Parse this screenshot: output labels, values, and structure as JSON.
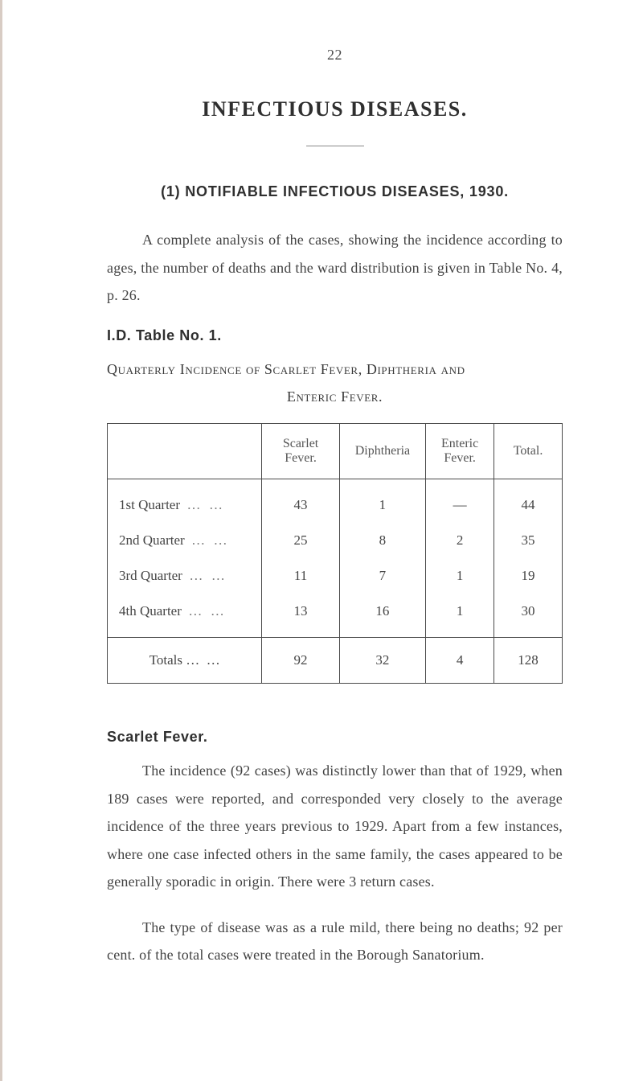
{
  "page_number": "22",
  "title": "INFECTIOUS DISEASES.",
  "section_heading": "(1) NOTIFIABLE INFECTIOUS DISEASES, 1930.",
  "intro_para": "A complete analysis of the cases, showing the incidence according to ages, the number of deaths and the ward dis­tribution is given in Table No. 4, p. 26.",
  "table_no_label": "I.D. Table No. 1.",
  "table_caption_line1": "Quarterly Incidence of Scarlet Fever, Diphtheria and",
  "table_caption_line2": "Enteric Fever.",
  "table": {
    "columns": [
      "",
      "Scarlet Fever.",
      "Diphtheria",
      "Enteric Fever.",
      "Total."
    ],
    "rows": [
      {
        "label": "1st Quarter",
        "values": [
          "43",
          "1",
          "—",
          "44"
        ]
      },
      {
        "label": "2nd Quarter",
        "values": [
          "25",
          "8",
          "2",
          "35"
        ]
      },
      {
        "label": "3rd Quarter",
        "values": [
          "11",
          "7",
          "1",
          "19"
        ]
      },
      {
        "label": "4th Quarter",
        "values": [
          "13",
          "16",
          "1",
          "30"
        ]
      }
    ],
    "totals": {
      "label": "Totals …",
      "values": [
        "92",
        "32",
        "4",
        "128"
      ]
    }
  },
  "scarlet_fever_heading": "Scarlet Fever.",
  "sf_para1": "The incidence (92 cases) was distinctly lower than that of 1929, when 189 cases were reported, and corresponded very closely to the average incidence of the three years previous to 1929. Apart from a few instances, where one case infected others in the same family, the cases appeared to be generally sporadic in origin. There were 3 return cases.",
  "sf_para2": "The type of disease was as a rule mild, there being no deaths; 92 per cent. of the total cases were treated in the Borough Sanatorium.",
  "colors": {
    "text": "#3a3a3a",
    "border": "#4a4a4a",
    "faded": "#8a8a8a",
    "edge": "#d8ccc4",
    "background": "#ffffff"
  }
}
